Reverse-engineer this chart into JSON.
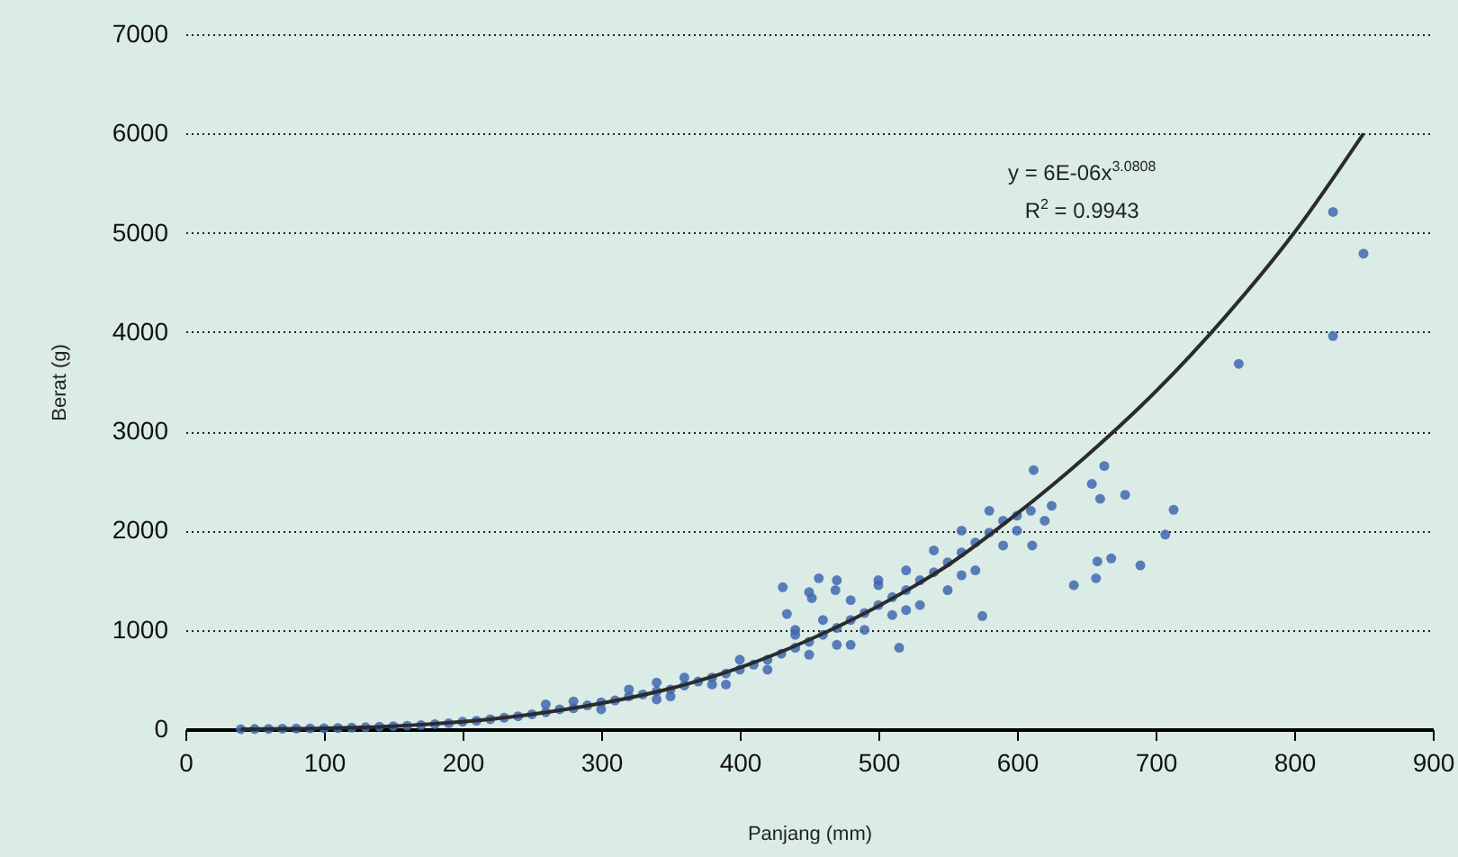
{
  "chart_data": {
    "type": "scatter",
    "xlabel": "Panjang (mm)",
    "ylabel": "Berat (g)",
    "xlim": [
      0,
      900
    ],
    "xticks": [
      0,
      100,
      200,
      300,
      400,
      500,
      600,
      700,
      800,
      900
    ],
    "ylim": [
      0,
      7000
    ],
    "yticks": [
      0,
      1000,
      2000,
      3000,
      4000,
      5000,
      6000,
      7000
    ],
    "grid": "y",
    "marker": "circle",
    "annotations": [
      "y = 6E-06x$^{3.0808}$",
      "R$^{2}$ = 0.9943"
    ],
    "series": [
      {
        "color": "#3f68b0",
        "x": [
          40,
          50,
          60,
          70,
          80,
          90,
          100,
          110,
          120,
          130,
          140,
          150,
          160,
          170,
          180,
          190,
          200,
          210,
          220,
          230,
          240,
          250,
          260,
          270,
          280,
          290,
          300,
          310,
          320,
          330,
          340,
          350,
          360,
          370,
          380,
          390,
          400,
          410,
          420,
          430,
          440,
          450,
          460,
          470,
          480,
          490,
          500,
          510,
          520,
          530,
          540,
          550,
          560,
          570,
          580,
          590,
          600,
          260,
          280,
          300,
          320,
          340,
          360,
          380,
          400,
          420,
          440,
          450,
          460,
          470,
          480,
          490,
          500,
          510,
          520,
          530,
          540,
          550,
          560,
          570,
          580,
          590,
          600,
          610,
          620,
          625,
          340,
          390,
          350,
          450,
          440,
          470,
          480,
          500,
          520,
          560,
          612,
          663,
          654,
          678,
          660,
          713,
          707,
          689,
          668,
          658,
          657,
          641,
          611,
          575,
          515,
          457,
          431,
          452,
          469,
          434,
          760,
          828,
          850,
          828
        ],
        "values": [
          0,
          2,
          3,
          5,
          6,
          8,
          10,
          12,
          15,
          20,
          25,
          30,
          35,
          40,
          50,
          60,
          75,
          85,
          100,
          115,
          130,
          150,
          170,
          200,
          210,
          240,
          270,
          290,
          330,
          350,
          380,
          400,
          440,
          480,
          520,
          560,
          600,
          650,
          700,
          760,
          820,
          880,
          950,
          1020,
          1100,
          1170,
          1250,
          1330,
          1400,
          1500,
          1580,
          1680,
          1780,
          1880,
          1980,
          2100,
          2150,
          250,
          280,
          200,
          400,
          300,
          520,
          450,
          700,
          600,
          950,
          750,
          1100,
          850,
          1300,
          1000,
          1450,
          1150,
          1600,
          1250,
          1800,
          1400,
          2000,
          1600,
          2200,
          1850,
          2000,
          2200,
          2100,
          2250,
          470,
          450,
          330,
          1380,
          1000,
          1500,
          850,
          1500,
          1200,
          1550,
          2610,
          2650,
          2470,
          2360,
          2320,
          2210,
          1960,
          1650,
          1720,
          1690,
          1520,
          1450,
          1850,
          1140,
          820,
          1520,
          1430,
          1320,
          1400,
          1160,
          3680,
          5210,
          4790,
          3960
        ]
      },
      {
        "type": "line",
        "marker": "none",
        "color": "#2b2b2b",
        "x": [
          40,
          100,
          150,
          200,
          250,
          300,
          350,
          400,
          450,
          500,
          550,
          600,
          650,
          700,
          750,
          800,
          850
        ],
        "values": [
          1,
          9,
          30,
          75,
          150,
          260,
          410,
          620,
          900,
          1240,
          1650,
          2170,
          2750,
          3400,
          4150,
          5000,
          6000
        ]
      }
    ]
  }
}
